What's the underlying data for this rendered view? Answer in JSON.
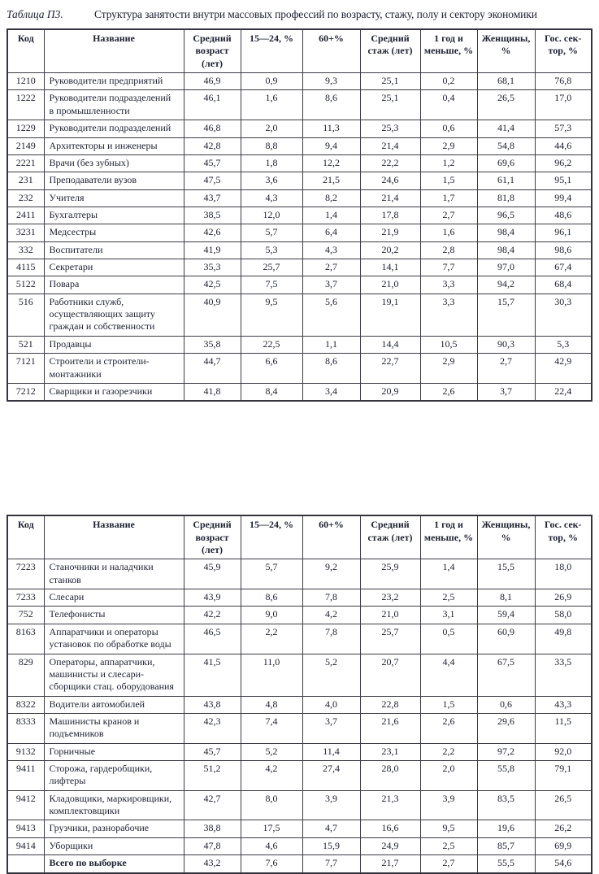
{
  "title": {
    "label": "Таблица П3.",
    "text": "Структура занятости внутри массовых профессий по возрасту, стажу, полу и сектору экономики"
  },
  "columns": [
    "Код",
    "Название",
    "Средний\nвозраст\n(лет)",
    "15—24, %",
    "60+%",
    "Средний\nстаж (лет)",
    "1 год и\nменьше, %",
    "Женщины,\n%",
    "Гос. сек-\nтор, %"
  ],
  "table1": {
    "rows": [
      {
        "code": "1210",
        "name": "Руководители предприятий",
        "values": [
          "46,9",
          "0,9",
          "9,3",
          "25,1",
          "0,2",
          "68,1",
          "76,8"
        ]
      },
      {
        "code": "1222",
        "name": "Руководители подразделений\nв промышленности",
        "values": [
          "46,1",
          "1,6",
          "8,6",
          "25,1",
          "0,4",
          "26,5",
          "17,0"
        ]
      },
      {
        "code": "1229",
        "name": "Руководители подразделений",
        "values": [
          "46,8",
          "2,0",
          "11,3",
          "25,3",
          "0,6",
          "41,4",
          "57,3"
        ]
      },
      {
        "code": "2149",
        "name": "Архитекторы и инженеры",
        "values": [
          "42,8",
          "8,8",
          "9,4",
          "21,4",
          "2,9",
          "54,8",
          "44,6"
        ]
      },
      {
        "code": "2221",
        "name": "Врачи (без зубных)",
        "values": [
          "45,7",
          "1,8",
          "12,2",
          "22,2",
          "1,2",
          "69,6",
          "96,2"
        ]
      },
      {
        "code": "231",
        "name": "Преподаватели вузов",
        "values": [
          "47,5",
          "3,6",
          "21,5",
          "24,6",
          "1,5",
          "61,1",
          "95,1"
        ]
      },
      {
        "code": "232",
        "name": "Учителя",
        "values": [
          "43,7",
          "4,3",
          "8,2",
          "21,4",
          "1,7",
          "81,8",
          "99,4"
        ]
      },
      {
        "code": "2411",
        "name": "Бухгалтеры",
        "values": [
          "38,5",
          "12,0",
          "1,4",
          "17,8",
          "2,7",
          "96,5",
          "48,6"
        ]
      },
      {
        "code": "3231",
        "name": "Медсестры",
        "values": [
          "42,6",
          "5,7",
          "6,4",
          "21,9",
          "1,6",
          "98,4",
          "96,1"
        ]
      },
      {
        "code": "332",
        "name": "Воспитатели",
        "values": [
          "41,9",
          "5,3",
          "4,3",
          "20,2",
          "2,8",
          "98,4",
          "98,6"
        ]
      },
      {
        "code": "4115",
        "name": "Секретари",
        "values": [
          "35,3",
          "25,7",
          "2,7",
          "14,1",
          "7,7",
          "97,0",
          "67,4"
        ]
      },
      {
        "code": "5122",
        "name": "Повара",
        "values": [
          "42,5",
          "7,5",
          "3,7",
          "21,0",
          "3,3",
          "94,2",
          "68,4"
        ]
      },
      {
        "code": "516",
        "name": "Работники служб,\nосуществляющих защиту\nграждан и собственности",
        "values": [
          "40,9",
          "9,5",
          "5,6",
          "19,1",
          "3,3",
          "15,7",
          "30,3"
        ]
      },
      {
        "code": "521",
        "name": "Продавцы",
        "values": [
          "35,8",
          "22,5",
          "1,1",
          "14,4",
          "10,5",
          "90,3",
          "5,3"
        ]
      },
      {
        "code": "7121",
        "name": "Строители и строители-\nмонтажники",
        "values": [
          "44,7",
          "6,6",
          "8,6",
          "22,7",
          "2,9",
          "2,7",
          "42,9"
        ]
      },
      {
        "code": "7212",
        "name": "Сварщики и газорезчики",
        "values": [
          "41,8",
          "8,4",
          "3,4",
          "20,9",
          "2,6",
          "3,7",
          "22,4"
        ]
      }
    ]
  },
  "table2": {
    "rows": [
      {
        "code": "7223",
        "name": "Станочники и наладчики\nстанков",
        "values": [
          "45,9",
          "5,7",
          "9,2",
          "25,9",
          "1,4",
          "15,5",
          "18,0"
        ]
      },
      {
        "code": "7233",
        "name": "Слесари",
        "values": [
          "43,9",
          "8,6",
          "7,8",
          "23,2",
          "2,5",
          "8,1",
          "26,9"
        ]
      },
      {
        "code": "752",
        "name": "Телефонисты",
        "values": [
          "42,2",
          "9,0",
          "4,2",
          "21,0",
          "3,1",
          "59,4",
          "58,0"
        ]
      },
      {
        "code": "8163",
        "name": "Аппаратчики и операторы\nустановок по обработке воды",
        "values": [
          "46,5",
          "2,2",
          "7,8",
          "25,7",
          "0,5",
          "60,9",
          "49,8"
        ]
      },
      {
        "code": "829",
        "name": "Операторы, аппаратчики,\nмашинисты и слесари-\nсборщики стац. оборудования",
        "values": [
          "41,5",
          "11,0",
          "5,2",
          "20,7",
          "4,4",
          "67,5",
          "33,5"
        ]
      },
      {
        "code": "8322",
        "name": "Водители автомобилей",
        "values": [
          "43,8",
          "4,8",
          "4,0",
          "22,8",
          "1,5",
          "0,6",
          "43,3"
        ]
      },
      {
        "code": "8333",
        "name": "Машинисты кранов и\nподъемников",
        "values": [
          "42,3",
          "7,4",
          "3,7",
          "21,6",
          "2,6",
          "29,6",
          "11,5"
        ]
      },
      {
        "code": "9132",
        "name": "Горничные",
        "values": [
          "45,7",
          "5,2",
          "11,4",
          "23,1",
          "2,2",
          "97,2",
          "92,0"
        ]
      },
      {
        "code": "9411",
        "name": "Сторожа, гардеробщики,\nлифтеры",
        "values": [
          "51,2",
          "4,2",
          "27,4",
          "28,0",
          "2,0",
          "55,8",
          "79,1"
        ]
      },
      {
        "code": "9412",
        "name": "Кладовщики, маркировщики,\nкомплектовщики",
        "values": [
          "42,7",
          "8,0",
          "3,9",
          "21,3",
          "3,9",
          "83,5",
          "26,5"
        ]
      },
      {
        "code": "9413",
        "name": "Грузчики, разнорабочие",
        "values": [
          "38,8",
          "17,5",
          "4,7",
          "16,6",
          "9,5",
          "19,6",
          "26,2"
        ]
      },
      {
        "code": "9414",
        "name": "Уборщики",
        "values": [
          "47,8",
          "4,6",
          "15,9",
          "24,9",
          "2,5",
          "85,7",
          "69,9"
        ]
      },
      {
        "code": "",
        "name": "Всего по выборке",
        "bold": true,
        "values": [
          "43,2",
          "7,6",
          "7,7",
          "21,7",
          "2,7",
          "55,5",
          "54,6"
        ]
      }
    ]
  }
}
